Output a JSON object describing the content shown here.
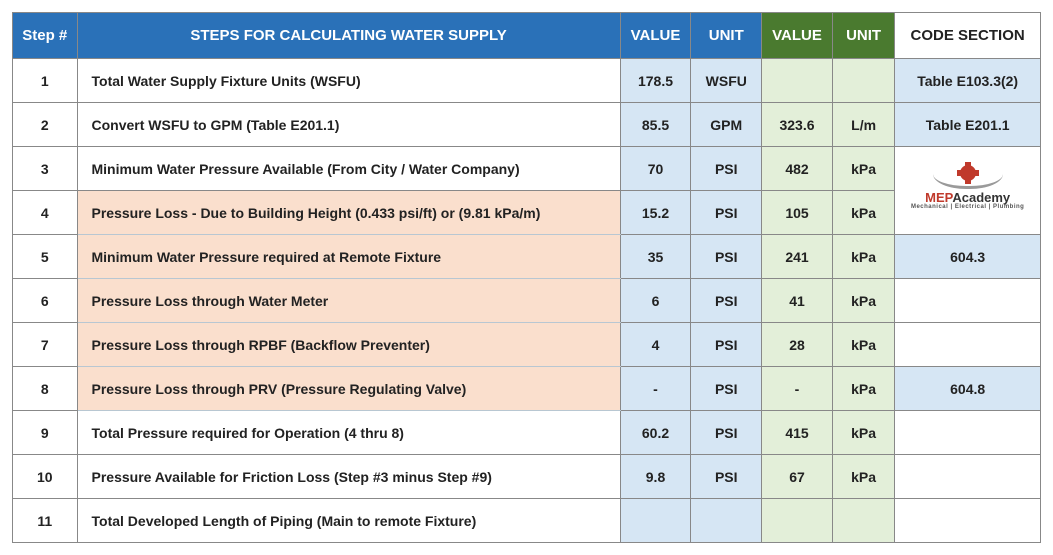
{
  "colors": {
    "header_blue": "#2a71b8",
    "header_green": "#4a7a2f",
    "cell_blue": "#d6e6f4",
    "cell_green": "#e3efd9",
    "highlight_peach": "#fadfcd",
    "border": "#888888",
    "text": "#222222"
  },
  "headers": {
    "step": "Step #",
    "desc": "STEPS FOR CALCULATING WATER SUPPLY",
    "val1": "VALUE",
    "unit1": "UNIT",
    "val2": "VALUE",
    "unit2": "UNIT",
    "code": "CODE SECTION"
  },
  "rows": [
    {
      "step": "1",
      "desc": "Total Water Supply Fixture Units (WSFU)",
      "hl": false,
      "v1": "178.5",
      "u1": "WSFU",
      "v2": "",
      "u2": "",
      "code": "Table E103.3(2)",
      "code_hl": true,
      "code_special": ""
    },
    {
      "step": "2",
      "desc": "Convert WSFU to GPM (Table E201.1)",
      "hl": false,
      "v1": "85.5",
      "u1": "GPM",
      "v2": "323.6",
      "u2": "L/m",
      "code": "Table E201.1",
      "code_hl": true,
      "code_special": ""
    },
    {
      "step": "3",
      "desc": "Minimum Water Pressure Available (From City / Water Company)",
      "hl": false,
      "v1": "70",
      "u1": "PSI",
      "v2": "482",
      "u2": "kPa",
      "code": "",
      "code_hl": false,
      "code_special": "logo-top"
    },
    {
      "step": "4",
      "desc": "Pressure Loss - Due to Building Height (0.433 psi/ft) or (9.81 kPa/m)",
      "hl": true,
      "v1": "15.2",
      "u1": "PSI",
      "v2": "105",
      "u2": "kPa",
      "code": "",
      "code_hl": false,
      "code_special": "logo-bottom"
    },
    {
      "step": "5",
      "desc": "Minimum Water Pressure required at Remote Fixture",
      "hl": true,
      "v1": "35",
      "u1": "PSI",
      "v2": "241",
      "u2": "kPa",
      "code": "604.3",
      "code_hl": true,
      "code_special": ""
    },
    {
      "step": "6",
      "desc": "Pressure Loss through Water Meter",
      "hl": true,
      "v1": "6",
      "u1": "PSI",
      "v2": "41",
      "u2": "kPa",
      "code": "",
      "code_hl": false,
      "code_special": ""
    },
    {
      "step": "7",
      "desc": "Pressure Loss through RPBF (Backflow Preventer)",
      "hl": true,
      "v1": "4",
      "u1": "PSI",
      "v2": "28",
      "u2": "kPa",
      "code": "",
      "code_hl": false,
      "code_special": ""
    },
    {
      "step": "8",
      "desc": "Pressure Loss through PRV (Pressure Regulating Valve)",
      "hl": true,
      "v1": "-",
      "u1": "PSI",
      "v2": "-",
      "u2": "kPa",
      "code": "604.8",
      "code_hl": true,
      "code_special": ""
    },
    {
      "step": "9",
      "desc": "Total Pressure required for Operation (4 thru 8)",
      "hl": false,
      "v1": "60.2",
      "u1": "PSI",
      "v2": "415",
      "u2": "kPa",
      "code": "",
      "code_hl": false,
      "code_special": ""
    },
    {
      "step": "10",
      "desc": "Pressure Available for Friction Loss (Step #3 minus Step #9)",
      "hl": false,
      "v1": "9.8",
      "u1": "PSI",
      "v2": "67",
      "u2": "kPa",
      "code": "",
      "code_hl": false,
      "code_special": ""
    },
    {
      "step": "11",
      "desc": "Total Developed Length of Piping (Main to remote Fixture)",
      "hl": false,
      "v1": "",
      "u1": "",
      "v2": "",
      "u2": "",
      "code": "",
      "code_hl": false,
      "code_special": ""
    }
  ],
  "logo": {
    "line1a": "MEP",
    "line1b": "Academy",
    "line2": "Mechanical | Electrical | Plumbing"
  }
}
